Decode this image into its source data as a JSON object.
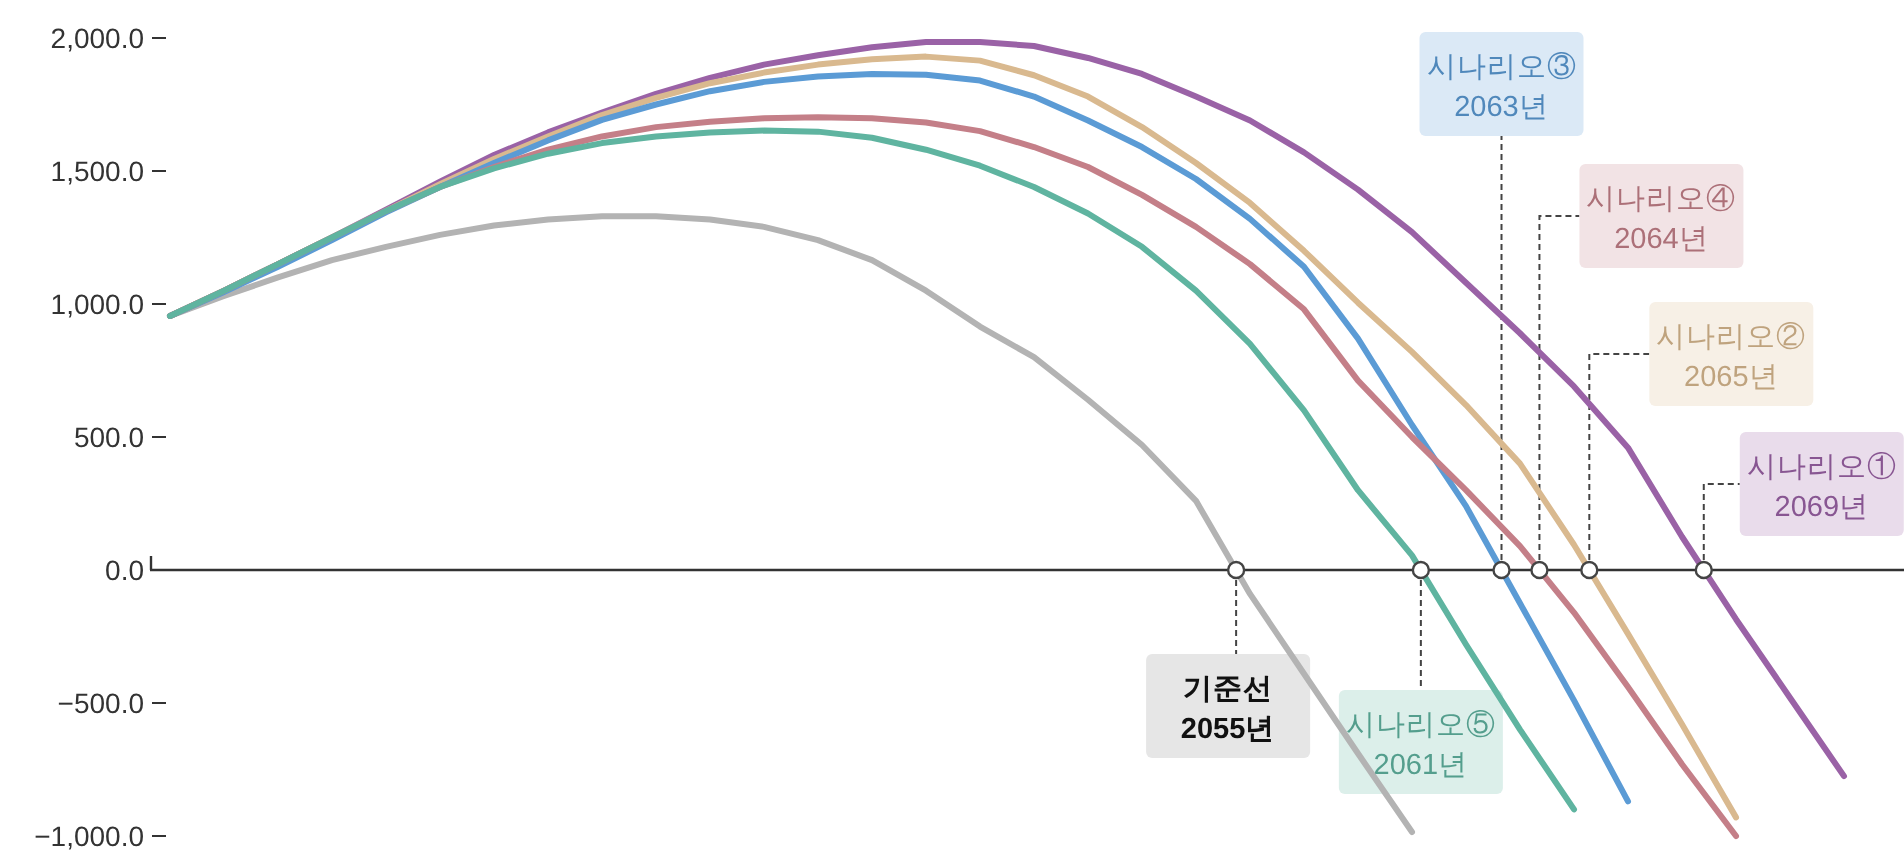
{
  "chart_data": {
    "type": "line",
    "categories": [
      null,
      null,
      null,
      null,
      null,
      null,
      null,
      null,
      null,
      null,
      null,
      null,
      null,
      null,
      null,
      null,
      null,
      null,
      null,
      null,
      null,
      null,
      null,
      null,
      null,
      null,
      null,
      null,
      null,
      null,
      null,
      null,
      null
    ],
    "ylim": [
      -1000,
      2000
    ],
    "yticks": [
      {
        "value": 2000,
        "label": "2,000.0"
      },
      {
        "value": 1500,
        "label": "1,500.0"
      },
      {
        "value": 1000,
        "label": "1,000.0"
      },
      {
        "value": 500,
        "label": "500.0"
      },
      {
        "value": 0,
        "label": "0.0"
      },
      {
        "value": -500,
        "label": "−500.0"
      },
      {
        "value": -1000,
        "label": "−1,000.0"
      }
    ],
    "line_style": "solid",
    "series": [
      {
        "color": "#b3b3b3",
        "values": [
          955,
          1030,
          1100,
          1165,
          1215,
          1260,
          1295,
          1318,
          1330,
          1330,
          1318,
          1290,
          1240,
          1165,
          1050,
          915,
          800,
          640,
          470,
          260,
          -90,
          -390,
          -690,
          -985,
          null,
          null,
          null,
          null,
          null,
          null,
          null,
          null,
          null
        ]
      },
      {
        "color": "#9a62a6",
        "values": [
          955,
          1050,
          1150,
          1250,
          1355,
          1460,
          1560,
          1645,
          1720,
          1790,
          1850,
          1900,
          1935,
          1965,
          1985,
          1985,
          1970,
          1925,
          1865,
          1780,
          1690,
          1570,
          1430,
          1270,
          1080,
          890,
          690,
          460,
          125,
          -185,
          -480,
          -775,
          null
        ]
      },
      {
        "color": "#d9b98f",
        "values": [
          955,
          1050,
          1150,
          1250,
          1350,
          1450,
          1545,
          1630,
          1710,
          1775,
          1830,
          1870,
          1900,
          1920,
          1930,
          1915,
          1860,
          1780,
          1665,
          1530,
          1380,
          1200,
          1005,
          820,
          620,
          400,
          95,
          -240,
          -580,
          -930,
          null,
          null,
          null
        ]
      },
      {
        "color": "#5b9bd5",
        "values": [
          955,
          1045,
          1140,
          1240,
          1345,
          1440,
          1530,
          1615,
          1692,
          1750,
          1800,
          1835,
          1855,
          1865,
          1862,
          1840,
          1780,
          1690,
          1590,
          1470,
          1320,
          1140,
          870,
          545,
          240,
          -125,
          -490,
          -870,
          null,
          null,
          null,
          null,
          null
        ]
      },
      {
        "color": "#c47f88",
        "values": [
          955,
          1050,
          1150,
          1250,
          1350,
          1440,
          1515,
          1580,
          1630,
          1665,
          1685,
          1698,
          1702,
          1698,
          1682,
          1650,
          1590,
          1515,
          1410,
          1290,
          1150,
          980,
          712,
          500,
          300,
          90,
          -160,
          -440,
          -730,
          -1000,
          null,
          null,
          null
        ]
      },
      {
        "color": "#5fb4a0",
        "values": [
          955,
          1050,
          1150,
          1250,
          1350,
          1440,
          1510,
          1565,
          1605,
          1630,
          1645,
          1652,
          1648,
          1625,
          1580,
          1520,
          1440,
          1340,
          1215,
          1050,
          850,
          600,
          300,
          55,
          -280,
          -600,
          -900,
          null,
          null,
          null,
          null,
          null,
          null
        ]
      }
    ],
    "annotations": [
      "기준선\n2055년",
      "시나리오①\n2069년",
      "시나리오②\n2065년",
      "시나리오③\n2063년",
      "시나리오④\n2064년",
      "시나리오⑤\n2061년"
    ]
  }
}
